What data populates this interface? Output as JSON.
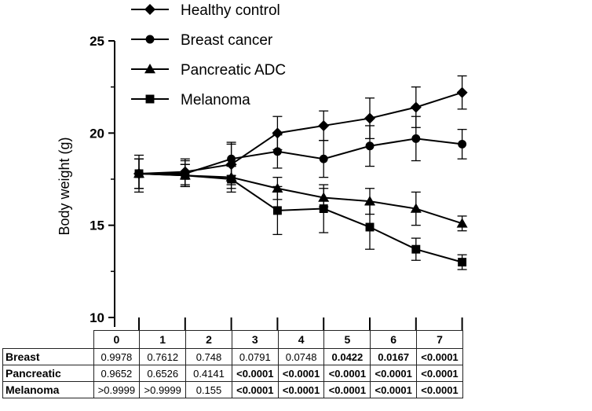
{
  "chart_data": {
    "type": "line",
    "ylabel": "Body weight (g)",
    "xlabel": "",
    "ylim": [
      10,
      25
    ],
    "yticks": [
      10,
      15,
      20,
      25
    ],
    "x": [
      0,
      1,
      2,
      3,
      4,
      5,
      6,
      7
    ],
    "legend_position": "top",
    "series": [
      {
        "name": "Healthy control",
        "marker": "diamond",
        "values": [
          17.8,
          17.9,
          18.3,
          20.0,
          20.4,
          20.8,
          21.4,
          22.2
        ],
        "error": [
          1.0,
          0.7,
          1.1,
          0.9,
          0.8,
          1.1,
          1.1,
          0.9
        ]
      },
      {
        "name": "Breast cancer",
        "marker": "circle",
        "values": [
          17.8,
          17.8,
          18.6,
          19.0,
          18.6,
          19.3,
          19.7,
          19.4
        ],
        "error": [
          0.8,
          0.7,
          0.9,
          0.9,
          1.0,
          1.1,
          1.2,
          0.8
        ]
      },
      {
        "name": "Pancreatic ADC",
        "marker": "triangle",
        "values": [
          17.8,
          17.7,
          17.6,
          17.0,
          16.5,
          16.3,
          15.9,
          15.1
        ],
        "error": [
          0.8,
          0.6,
          0.6,
          0.6,
          0.5,
          0.7,
          0.9,
          0.4
        ]
      },
      {
        "name": "Melanoma",
        "marker": "square",
        "values": [
          17.8,
          17.7,
          17.5,
          15.8,
          15.9,
          14.9,
          13.7,
          13.0
        ],
        "error": [
          0.8,
          0.6,
          0.7,
          1.3,
          1.3,
          1.2,
          0.6,
          0.4
        ]
      }
    ]
  },
  "table": {
    "columns": [
      "0",
      "1",
      "2",
      "3",
      "4",
      "5",
      "6",
      "7"
    ],
    "rows": [
      {
        "label": "Breast",
        "values": [
          "0.9978",
          "0.7612",
          "0.748",
          "0.0791",
          "0.0748",
          "0.0422",
          "0.0167",
          "<0.0001"
        ],
        "bold": [
          false,
          false,
          false,
          false,
          false,
          true,
          true,
          true
        ]
      },
      {
        "label": "Pancreatic",
        "values": [
          "0.9652",
          "0.6526",
          "0.4141",
          "<0.0001",
          "<0.0001",
          "<0.0001",
          "<0.0001",
          "<0.0001"
        ],
        "bold": [
          false,
          false,
          false,
          true,
          true,
          true,
          true,
          true
        ]
      },
      {
        "label": "Melanoma",
        "values": [
          ">0.9999",
          ">0.9999",
          "0.155",
          "<0.0001",
          "<0.0001",
          "<0.0001",
          "<0.0001",
          "<0.0001"
        ],
        "bold": [
          false,
          false,
          false,
          true,
          true,
          true,
          true,
          true
        ]
      }
    ]
  }
}
